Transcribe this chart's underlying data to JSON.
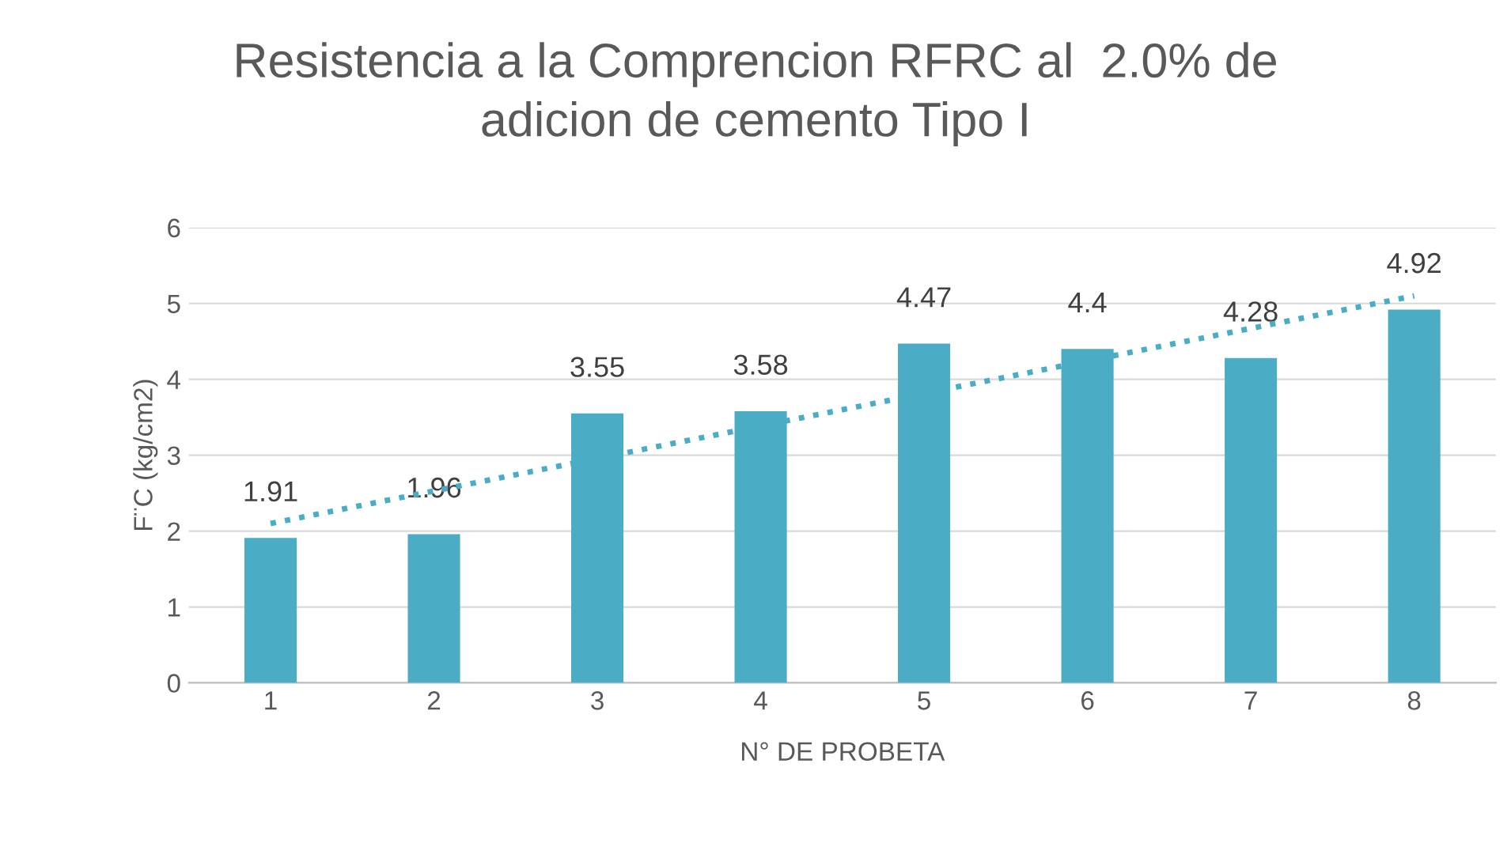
{
  "chart_data": {
    "type": "bar",
    "title": "Resistencia a la Comprencion RFRC al  2.0% de\nadicion de cemento Tipo I",
    "xlabel": "N° DE PROBETA",
    "ylabel": "F¨C (kg/cm2)",
    "categories": [
      "1",
      "2",
      "3",
      "4",
      "5",
      "6",
      "7",
      "8"
    ],
    "series": [
      {
        "color": "#4bacc6",
        "values": [
          1.91,
          1.96,
          3.55,
          3.58,
          4.47,
          4.4,
          4.28,
          4.92
        ],
        "value_labels": [
          "1.91",
          "1.96",
          "3.55",
          "3.58",
          "4.47",
          "4.4",
          "4.28",
          "4.92"
        ]
      },
      {
        "type": "line",
        "color": "#4bacc6",
        "line_style": "dotted",
        "x": [
          "1",
          "8"
        ],
        "values": [
          2.1,
          5.1
        ]
      }
    ],
    "ylim": [
      0,
      6
    ],
    "yticks": [
      0,
      1,
      2,
      3,
      4,
      5,
      6
    ],
    "grid": "y"
  }
}
